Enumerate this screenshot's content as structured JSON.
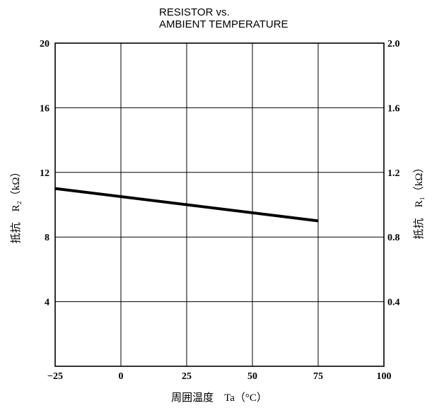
{
  "chart_data": {
    "type": "line",
    "title_lines": [
      "RESISTOR vs.",
      "AMBIENT TEMPERATURE"
    ],
    "xlabel": "周囲温度　Ta（°C）",
    "ylabel_left": "抵抗　R₂（kΩ）",
    "ylabel_right": "抵抗　R₁（kΩ）",
    "xlim": [
      -25,
      100
    ],
    "ylim_left": [
      0,
      20
    ],
    "ylim_right": [
      0,
      2.0
    ],
    "x_ticks": [
      "−25",
      "0",
      "25",
      "50",
      "75",
      "100"
    ],
    "x_tick_values": [
      -25,
      0,
      25,
      50,
      75,
      100
    ],
    "y_left_ticks": [
      "20",
      "16",
      "12",
      "8",
      "4"
    ],
    "y_left_tick_values": [
      20,
      16,
      12,
      8,
      4
    ],
    "y_right_ticks": [
      "2.0",
      "1.6",
      "1.2",
      "0.8",
      "0.4"
    ],
    "y_right_tick_values": [
      2.0,
      1.6,
      1.2,
      0.8,
      0.4
    ],
    "grid": true,
    "series": [
      {
        "x": [
          -25,
          75
        ],
        "y": [
          11.0,
          9.0
        ]
      }
    ]
  }
}
